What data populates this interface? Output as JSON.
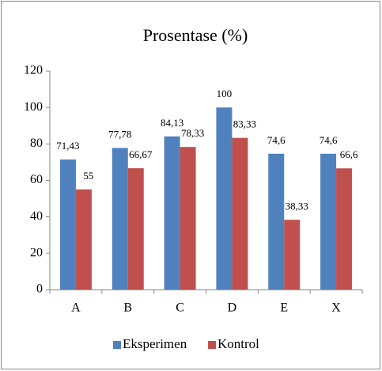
{
  "chart_data": {
    "type": "bar",
    "title": "Prosentase  (%)",
    "categories": [
      "A",
      "B",
      "C",
      "D",
      "E",
      "X"
    ],
    "series": [
      {
        "name": "Eksperimen",
        "color": "#4f81bd",
        "values": [
          71.43,
          77.78,
          84.13,
          100,
          74.6,
          74.6
        ],
        "value_labels": [
          "71,43",
          "77,78",
          "84,13",
          "100",
          "74,6",
          "74,6"
        ]
      },
      {
        "name": "Kontrol",
        "color": "#c0504d",
        "values": [
          55,
          66.67,
          78.33,
          83.33,
          38.33,
          66.6
        ],
        "value_labels": [
          "55",
          "66,67",
          "78,33",
          "83,33",
          "38,33",
          "66,6"
        ]
      }
    ],
    "ylim": [
      0,
      120
    ],
    "yticks": [
      0,
      20,
      40,
      60,
      80,
      100,
      120
    ],
    "grid": false,
    "legend": "bottom"
  }
}
